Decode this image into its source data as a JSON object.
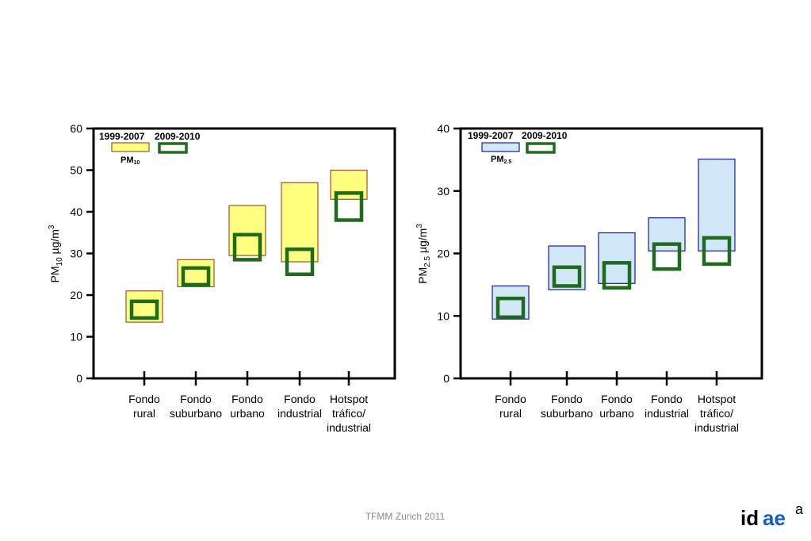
{
  "chart_data": [
    {
      "type": "range-box",
      "ylim": [
        0,
        60
      ],
      "yticks": [
        "0",
        "10",
        "20",
        "30",
        "40",
        "50",
        "60"
      ],
      "ylabel": {
        "prefix": "PM",
        "sub": "10",
        "unit": " µg/m",
        "sup": "3"
      },
      "categories": [
        [
          "Fondo",
          "rural"
        ],
        [
          "Fondo",
          "suburbano"
        ],
        [
          "Fondo",
          "urbano"
        ],
        [
          "Fondo",
          "industrial"
        ],
        [
          "Hotspot",
          "tráfico/",
          "industrial"
        ]
      ],
      "legend": {
        "period_1": "1999-2007",
        "period_2": "2009-2010",
        "pollutant": "PM",
        "pollutant_sub": "10"
      },
      "series": [
        {
          "name": "1999-2007",
          "ranges": [
            [
              13.5,
              21
            ],
            [
              22,
              28.5
            ],
            [
              29.5,
              41.5
            ],
            [
              28,
              47
            ],
            [
              43,
              50
            ]
          ],
          "fill": "#ffff80",
          "stroke": "#a0522d"
        },
        {
          "name": "2009-2010",
          "ranges": [
            [
              14.5,
              18.5
            ],
            [
              22.5,
              26.5
            ],
            [
              28.5,
              34.5
            ],
            [
              25,
              31
            ],
            [
              38,
              44.5
            ]
          ],
          "stroke": "#1e6b1e"
        }
      ]
    },
    {
      "type": "range-box",
      "ylim": [
        0,
        40
      ],
      "yticks": [
        "0",
        "10",
        "20",
        "30",
        "40"
      ],
      "ylabel": {
        "prefix": "PM",
        "sub": "2.5",
        "unit": " µg/m",
        "sup": "3"
      },
      "categories": [
        [
          "Fondo",
          "rural"
        ],
        [
          "Fondo",
          "suburbano"
        ],
        [
          "Fondo",
          "urbano"
        ],
        [
          "Fondo",
          "industrial"
        ],
        [
          "Hotspot",
          "tráfico/",
          "industrial"
        ]
      ],
      "legend": {
        "period_1": "1999-2007",
        "period_2": "2009-2010",
        "pollutant": "PM",
        "pollutant_sub": "2.5"
      },
      "series": [
        {
          "name": "1999-2007",
          "ranges": [
            [
              9.5,
              14.8
            ],
            [
              14.2,
              21.2
            ],
            [
              15.2,
              23.3
            ],
            [
              20.4,
              25.7
            ],
            [
              20.4,
              35.1
            ]
          ],
          "fill": "#d0e8f8",
          "stroke": "#1a1aa0"
        },
        {
          "name": "2009-2010",
          "ranges": [
            [
              9.8,
              12.8
            ],
            [
              14.8,
              17.8
            ],
            [
              14.5,
              18.5
            ],
            [
              17.5,
              21.5
            ],
            [
              18.3,
              22.5
            ]
          ],
          "stroke": "#1e6b1e"
        }
      ]
    }
  ],
  "footer": "TFMM Zurich 2011",
  "logo": {
    "text_1": "id",
    "text_2": "ae",
    "text_3": "a"
  }
}
